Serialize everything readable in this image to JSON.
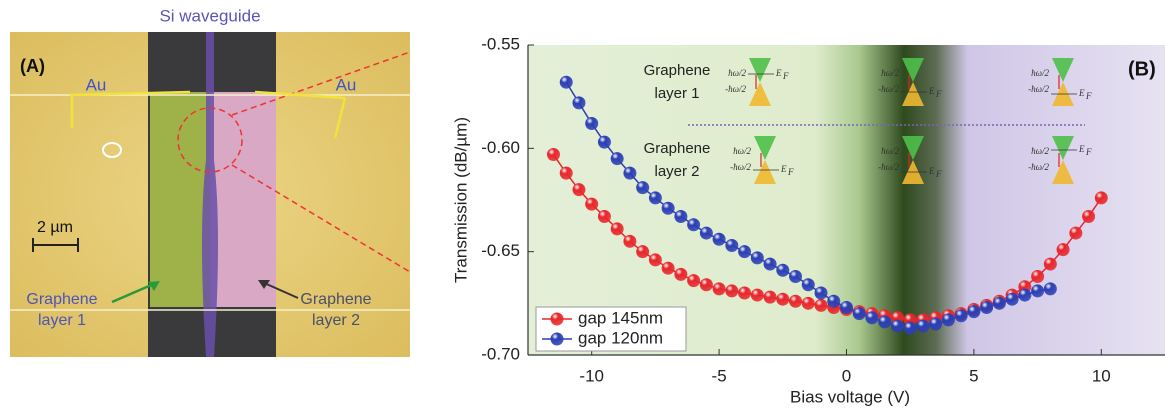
{
  "chart_data": {
    "type": "line",
    "xlabel": "Bias voltage (V)",
    "ylabel": "Transmission (dB/µm)",
    "panel_label": "(B)",
    "xlim": [
      -12.5,
      12.5
    ],
    "ylim": [
      -0.7,
      -0.55
    ],
    "xticks": [
      -10,
      -5,
      0,
      5,
      10
    ],
    "yticks": [
      -0.55,
      {
        "value": -0.6,
        "label": "-0.60"
      },
      -0.65,
      {
        "value": -0.7,
        "label": "-0.70"
      }
    ],
    "legend": "lower left",
    "markers": true,
    "series": [
      {
        "name": "gap 145nm",
        "color": "#e8262b",
        "x": [
          -11.5,
          -11,
          -10.5,
          -10,
          -9.5,
          -9,
          -8.5,
          -8,
          -7.5,
          -7,
          -6.5,
          -6,
          -5.5,
          -5,
          -4.5,
          -4,
          -3.5,
          -3,
          -2.5,
          -2,
          -1.5,
          -1,
          -0.5,
          0,
          0.5,
          1,
          1.5,
          2,
          2.5,
          3,
          3.5,
          4,
          4.5,
          5,
          5.5,
          6,
          6.5,
          7,
          7.5,
          8,
          8.5,
          9,
          9.5,
          10
        ],
        "values": [
          -0.603,
          -0.612,
          -0.62,
          -0.627,
          -0.633,
          -0.639,
          -0.645,
          -0.65,
          -0.654,
          -0.658,
          -0.661,
          -0.664,
          -0.666,
          -0.668,
          -0.669,
          -0.67,
          -0.671,
          -0.672,
          -0.673,
          -0.674,
          -0.675,
          -0.676,
          -0.677,
          -0.678,
          -0.679,
          -0.68,
          -0.681,
          -0.682,
          -0.683,
          -0.683,
          -0.682,
          -0.681,
          -0.68,
          -0.678,
          -0.676,
          -0.674,
          -0.671,
          -0.667,
          -0.662,
          -0.656,
          -0.649,
          -0.641,
          -0.633,
          -0.624
        ]
      },
      {
        "name": "gap 120nm",
        "color": "#2b3fb5",
        "x": [
          -11,
          -10.5,
          -10,
          -9.5,
          -9,
          -8.5,
          -8,
          -7.5,
          -7,
          -6.5,
          -6,
          -5.5,
          -5,
          -4.5,
          -4,
          -3.5,
          -3,
          -2.5,
          -2,
          -1.5,
          -1,
          -0.5,
          0,
          0.5,
          1,
          1.5,
          2,
          2.5,
          3,
          3.5,
          4,
          4.5,
          5,
          5.5,
          6,
          6.5,
          7,
          7.5,
          8
        ],
        "values": [
          -0.568,
          -0.578,
          -0.588,
          -0.597,
          -0.605,
          -0.612,
          -0.619,
          -0.624,
          -0.629,
          -0.633,
          -0.637,
          -0.641,
          -0.644,
          -0.647,
          -0.65,
          -0.653,
          -0.656,
          -0.659,
          -0.662,
          -0.666,
          -0.67,
          -0.674,
          -0.677,
          -0.68,
          -0.682,
          -0.684,
          -0.686,
          -0.687,
          -0.686,
          -0.685,
          -0.683,
          -0.681,
          -0.679,
          -0.677,
          -0.675,
          -0.673,
          -0.671,
          -0.669,
          -0.668
        ]
      }
    ]
  },
  "insets": {
    "rows": [
      {
        "label": [
          "Graphene",
          "layer 1"
        ]
      },
      {
        "label": [
          "Graphene",
          "layer 2"
        ]
      }
    ],
    "band_labels": {
      "upper": "ħω/2",
      "lower": "-ħω/2",
      "fermi": "E",
      "fermi_subscript": "F"
    }
  },
  "panel_a": {
    "label": "(A)",
    "top_label": "Si waveguide",
    "electrode_left": "Au",
    "electrode_right": "Au",
    "scale_bar": "2 µm",
    "layer_left": [
      "Graphene",
      "layer 1"
    ],
    "layer_right": [
      "Graphene",
      "layer 2"
    ]
  }
}
